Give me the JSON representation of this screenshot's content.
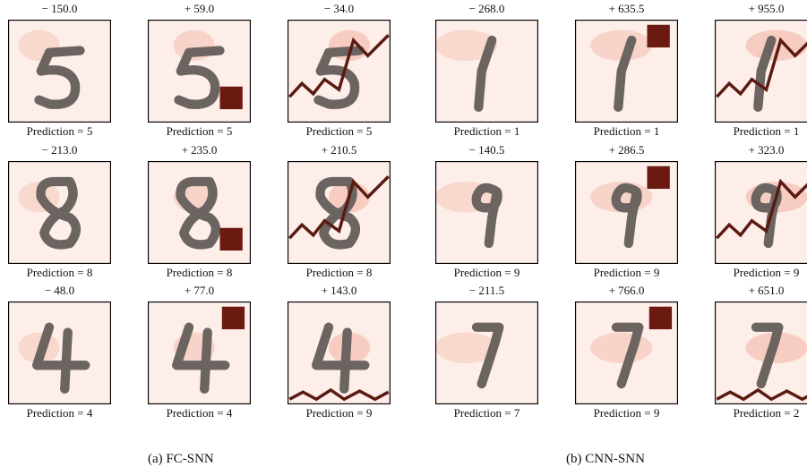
{
  "panels": [
    {
      "caption": "(a) FC-SNN",
      "rows": [
        [
          {
            "title": "− 150.0",
            "prediction": "Prediction = 5"
          },
          {
            "title": "+ 59.0",
            "prediction": "Prediction = 5"
          },
          {
            "title": "− 34.0",
            "prediction": "Prediction = 5"
          }
        ],
        [
          {
            "title": "− 213.0",
            "prediction": "Prediction = 8"
          },
          {
            "title": "+ 235.0",
            "prediction": "Prediction = 8"
          },
          {
            "title": "+ 210.5",
            "prediction": "Prediction = 8"
          }
        ],
        [
          {
            "title": "− 48.0",
            "prediction": "Prediction = 4"
          },
          {
            "title": "+ 77.0",
            "prediction": "Prediction = 4"
          },
          {
            "title": "+ 143.0",
            "prediction": "Prediction = 9"
          }
        ]
      ]
    },
    {
      "caption": "(b) CNN-SNN",
      "rows": [
        [
          {
            "title": "− 268.0",
            "prediction": "Prediction = 1"
          },
          {
            "title": "+ 635.5",
            "prediction": "Prediction = 1"
          },
          {
            "title": "+ 955.0",
            "prediction": "Prediction = 1"
          }
        ],
        [
          {
            "title": "− 140.5",
            "prediction": "Prediction = 9"
          },
          {
            "title": "+ 286.5",
            "prediction": "Prediction = 9"
          },
          {
            "title": "+ 323.0",
            "prediction": "Prediction = 9"
          }
        ],
        [
          {
            "title": "− 211.5",
            "prediction": "Prediction = 7"
          },
          {
            "title": "+ 766.0",
            "prediction": "Prediction = 9"
          },
          {
            "title": "+ 651.0",
            "prediction": "Prediction = 2"
          }
        ]
      ]
    }
  ]
}
